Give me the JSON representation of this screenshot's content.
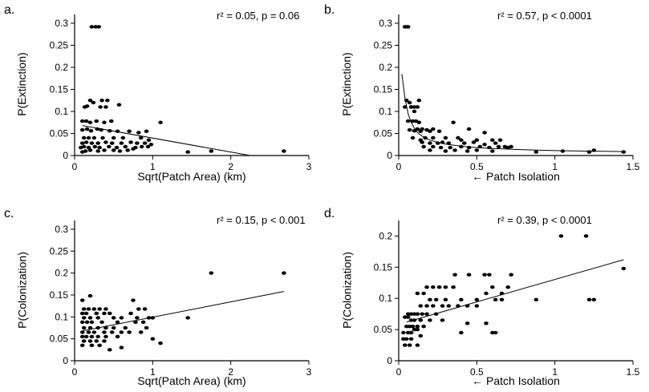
{
  "chart_data": [
    {
      "type": "scatter",
      "panel_label": "a.",
      "stat_text": "r² = 0.05, p = 0.06",
      "xlabel": "Sqrt(Patch Area) (km)",
      "ylabel": "P(Extinction)",
      "xlim": [
        0,
        3
      ],
      "ylim": [
        0,
        0.32
      ],
      "xticks": [
        "0",
        "1",
        "2",
        "3"
      ],
      "yticks": [
        "0",
        "0.05",
        "0.1",
        "0.15",
        "0.2",
        "0.25",
        "0.3"
      ],
      "xtick_values": [
        0,
        1,
        2,
        3
      ],
      "ytick_values": [
        0,
        0.05,
        0.1,
        0.15,
        0.2,
        0.25,
        0.3
      ],
      "fit": {
        "kind": "linear",
        "x": [
          0.1,
          2.25
        ],
        "y": [
          0.068,
          0.0
        ]
      },
      "points": {
        "x": [
          0.22,
          0.27,
          0.31,
          0.2,
          0.24,
          0.35,
          0.42,
          0.13,
          0.16,
          0.33,
          0.4,
          0.57,
          0.1,
          0.15,
          0.2,
          0.28,
          0.38,
          0.47,
          0.1,
          0.16,
          0.21,
          0.29,
          0.34,
          0.45,
          0.55,
          0.7,
          0.82,
          0.92,
          1.1,
          0.12,
          0.18,
          0.25,
          0.36,
          0.5,
          0.62,
          0.85,
          0.95,
          0.1,
          0.15,
          0.22,
          0.3,
          0.4,
          0.48,
          0.6,
          0.72,
          0.8,
          0.9,
          0.98,
          0.08,
          0.12,
          0.18,
          0.26,
          0.32,
          0.44,
          0.54,
          0.65,
          0.78,
          0.86,
          0.94,
          1.45,
          1.75,
          2.68,
          0.1,
          0.14,
          0.2,
          0.3,
          0.38,
          0.5,
          0.58,
          0.68,
          0.75
        ],
        "y": [
          0.292,
          0.292,
          0.292,
          0.125,
          0.12,
          0.125,
          0.125,
          0.11,
          0.112,
          0.11,
          0.11,
          0.115,
          0.078,
          0.078,
          0.075,
          0.078,
          0.075,
          0.078,
          0.058,
          0.06,
          0.056,
          0.06,
          0.058,
          0.056,
          0.055,
          0.055,
          0.052,
          0.055,
          0.075,
          0.04,
          0.04,
          0.04,
          0.04,
          0.04,
          0.04,
          0.04,
          0.035,
          0.028,
          0.03,
          0.028,
          0.028,
          0.03,
          0.028,
          0.028,
          0.03,
          0.028,
          0.028,
          0.025,
          0.018,
          0.02,
          0.018,
          0.02,
          0.018,
          0.02,
          0.018,
          0.02,
          0.018,
          0.02,
          0.02,
          0.008,
          0.01,
          0.01,
          0.008,
          0.01,
          0.012,
          0.01,
          0.012,
          0.012,
          0.01,
          0.012,
          0.015
        ]
      }
    },
    {
      "type": "scatter",
      "panel_label": "b.",
      "stat_text": "r² = 0.57, p < 0.0001",
      "xlabel": "← Patch Isolation",
      "ylabel": "P(Extinction)",
      "xlim": [
        0,
        1.5
      ],
      "ylim": [
        0,
        0.32
      ],
      "xticks": [
        "0",
        "0.5",
        "1",
        "1.5"
      ],
      "yticks": [
        "0",
        "0.05",
        "0.1",
        "0.15",
        "0.2",
        "0.25",
        "0.3"
      ],
      "xtick_values": [
        0,
        0.5,
        1,
        1.5
      ],
      "ytick_values": [
        0,
        0.05,
        0.1,
        0.15,
        0.2,
        0.25,
        0.3
      ],
      "fit": {
        "kind": "curve",
        "x": [
          0.02,
          0.04,
          0.06,
          0.08,
          0.1,
          0.12,
          0.15,
          0.2,
          0.25,
          0.3,
          0.4,
          0.5,
          0.6,
          0.8,
          1.0,
          1.2,
          1.44
        ],
        "y": [
          0.185,
          0.13,
          0.095,
          0.075,
          0.062,
          0.052,
          0.044,
          0.035,
          0.03,
          0.026,
          0.021,
          0.018,
          0.016,
          0.013,
          0.011,
          0.01,
          0.009
        ]
      },
      "points": {
        "x": [
          0.04,
          0.05,
          0.06,
          0.05,
          0.07,
          0.08,
          0.1,
          0.12,
          0.13,
          0.04,
          0.08,
          0.1,
          0.06,
          0.09,
          0.11,
          0.13,
          0.15,
          0.18,
          0.22,
          0.07,
          0.1,
          0.12,
          0.14,
          0.2,
          0.26,
          0.35,
          0.45,
          0.55,
          0.09,
          0.14,
          0.17,
          0.22,
          0.3,
          0.38,
          0.4,
          0.5,
          0.6,
          0.65,
          0.15,
          0.2,
          0.25,
          0.28,
          0.32,
          0.42,
          0.48,
          0.55,
          0.62,
          0.68,
          0.72,
          0.16,
          0.22,
          0.27,
          0.33,
          0.4,
          0.45,
          0.52,
          0.58,
          0.64,
          0.7,
          0.88,
          1.05,
          1.22,
          1.25,
          1.44,
          0.2,
          0.3,
          0.36,
          0.44,
          0.5,
          0.6
        ],
        "y": [
          0.292,
          0.292,
          0.292,
          0.125,
          0.12,
          0.11,
          0.11,
          0.11,
          0.125,
          0.11,
          0.11,
          0.1,
          0.078,
          0.078,
          0.078,
          0.075,
          0.06,
          0.058,
          0.06,
          0.058,
          0.056,
          0.06,
          0.055,
          0.055,
          0.055,
          0.075,
          0.06,
          0.052,
          0.04,
          0.035,
          0.04,
          0.04,
          0.04,
          0.04,
          0.035,
          0.035,
          0.035,
          0.035,
          0.03,
          0.028,
          0.028,
          0.03,
          0.028,
          0.028,
          0.03,
          0.025,
          0.028,
          0.02,
          0.02,
          0.02,
          0.02,
          0.018,
          0.018,
          0.02,
          0.018,
          0.02,
          0.018,
          0.02,
          0.018,
          0.008,
          0.01,
          0.008,
          0.012,
          0.008,
          0.012,
          0.01,
          0.012,
          0.01,
          0.012,
          0.01
        ]
      }
    },
    {
      "type": "scatter",
      "panel_label": "c.",
      "stat_text": "r² = 0.15, p < 0.001",
      "xlabel": "Sqrt(Patch Area) (km)",
      "ylabel": "P(Colonization)",
      "xlim": [
        0,
        3
      ],
      "ylim": [
        0,
        0.32
      ],
      "xticks": [
        "0",
        "1",
        "2",
        "3"
      ],
      "yticks": [
        "0",
        "0.05",
        "0.1",
        "0.15",
        "0.2",
        "0.25",
        "0.3"
      ],
      "xtick_values": [
        0,
        1,
        2,
        3
      ],
      "ytick_values": [
        0,
        0.05,
        0.1,
        0.15,
        0.2,
        0.25,
        0.3
      ],
      "fit": {
        "kind": "linear",
        "x": [
          0.1,
          2.68
        ],
        "y": [
          0.068,
          0.158
        ]
      },
      "points": {
        "x": [
          1.75,
          2.68,
          0.2,
          0.1,
          0.75,
          0.12,
          0.18,
          0.25,
          0.32,
          0.4,
          0.82,
          0.9,
          0.1,
          0.15,
          0.28,
          0.38,
          0.45,
          0.72,
          0.95,
          0.12,
          0.2,
          0.3,
          0.5,
          0.6,
          0.8,
          1.0,
          1.45,
          0.1,
          0.16,
          0.22,
          0.35,
          0.55,
          0.78,
          0.88,
          0.12,
          0.2,
          0.3,
          0.4,
          0.5,
          0.65,
          0.92,
          0.1,
          0.18,
          0.25,
          0.38,
          0.48,
          0.6,
          0.7,
          0.85,
          1.0,
          1.1,
          0.1,
          0.15,
          0.22,
          0.3,
          0.4,
          0.55,
          0.12,
          0.2,
          0.28,
          0.38,
          0.1,
          0.22,
          0.32,
          0.6,
          0.45
        ],
        "y": [
          0.2,
          0.2,
          0.148,
          0.138,
          0.138,
          0.118,
          0.118,
          0.118,
          0.118,
          0.118,
          0.118,
          0.118,
          0.108,
          0.108,
          0.108,
          0.108,
          0.108,
          0.108,
          0.098,
          0.098,
          0.098,
          0.098,
          0.098,
          0.098,
          0.098,
          0.098,
          0.098,
          0.088,
          0.088,
          0.088,
          0.088,
          0.088,
          0.088,
          0.088,
          0.075,
          0.075,
          0.075,
          0.075,
          0.075,
          0.075,
          0.075,
          0.065,
          0.065,
          0.065,
          0.065,
          0.065,
          0.065,
          0.065,
          0.065,
          0.05,
          0.04,
          0.055,
          0.055,
          0.055,
          0.055,
          0.055,
          0.055,
          0.045,
          0.045,
          0.045,
          0.045,
          0.035,
          0.035,
          0.035,
          0.03,
          0.025
        ]
      }
    },
    {
      "type": "scatter",
      "panel_label": "d.",
      "stat_text": "r² = 0.39, p < 0.0001",
      "xlabel": "← Patch Isolation",
      "ylabel": "P(Colonization)",
      "xlim": [
        0,
        1.5
      ],
      "ylim": [
        0,
        0.225
      ],
      "xticks": [
        "0",
        "0.5",
        "1",
        "1.5"
      ],
      "yticks": [
        "0",
        "0.05",
        "0.1",
        "0.15",
        "0.2"
      ],
      "xtick_values": [
        0,
        0.5,
        1,
        1.5
      ],
      "ytick_values": [
        0,
        0.05,
        0.1,
        0.15,
        0.2
      ],
      "fit": {
        "kind": "linear",
        "x": [
          0.05,
          1.44
        ],
        "y": [
          0.062,
          0.162
        ]
      },
      "points": {
        "x": [
          1.04,
          1.2,
          1.44,
          1.22,
          1.25,
          0.88,
          0.36,
          0.45,
          0.55,
          0.58,
          0.72,
          0.18,
          0.22,
          0.26,
          0.3,
          0.35,
          0.6,
          0.66,
          0.7,
          0.12,
          0.16,
          0.2,
          0.24,
          0.3,
          0.4,
          0.5,
          0.56,
          0.14,
          0.18,
          0.22,
          0.28,
          0.32,
          0.38,
          0.44,
          0.5,
          0.62,
          0.66,
          0.06,
          0.08,
          0.1,
          0.12,
          0.15,
          0.18,
          0.24,
          0.28,
          0.04,
          0.06,
          0.08,
          0.1,
          0.14,
          0.2,
          0.05,
          0.07,
          0.09,
          0.12,
          0.16,
          0.03,
          0.06,
          0.08,
          0.1,
          0.12,
          0.14,
          0.4,
          0.44,
          0.56,
          0.6,
          0.62,
          0.03,
          0.05,
          0.08,
          0.12,
          0.04,
          0.07
        ],
        "y": [
          0.2,
          0.2,
          0.148,
          0.098,
          0.098,
          0.098,
          0.138,
          0.138,
          0.138,
          0.138,
          0.138,
          0.118,
          0.118,
          0.118,
          0.118,
          0.118,
          0.118,
          0.108,
          0.118,
          0.108,
          0.108,
          0.098,
          0.098,
          0.098,
          0.098,
          0.098,
          0.108,
          0.088,
          0.088,
          0.088,
          0.088,
          0.088,
          0.088,
          0.088,
          0.088,
          0.098,
          0.098,
          0.075,
          0.075,
          0.075,
          0.075,
          0.075,
          0.075,
          0.075,
          0.065,
          0.07,
          0.07,
          0.065,
          0.065,
          0.065,
          0.065,
          0.055,
          0.055,
          0.055,
          0.055,
          0.055,
          0.045,
          0.045,
          0.045,
          0.05,
          0.05,
          0.04,
          0.045,
          0.06,
          0.06,
          0.045,
          0.045,
          0.035,
          0.035,
          0.035,
          0.025,
          0.025,
          0.025
        ]
      }
    }
  ]
}
